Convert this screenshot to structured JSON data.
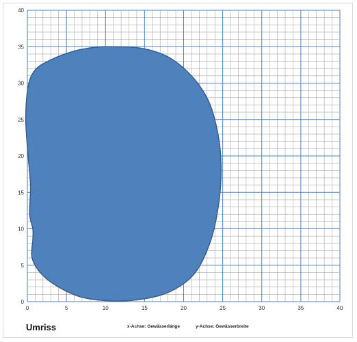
{
  "chart_data": {
    "type": "area",
    "title": "",
    "xlabel": "",
    "ylabel": "",
    "xlim": [
      0,
      40
    ],
    "ylim": [
      0,
      40
    ],
    "x_ticks": [
      0,
      5,
      10,
      15,
      20,
      25,
      30,
      35,
      40
    ],
    "y_ticks": [
      0,
      5,
      10,
      15,
      20,
      25,
      30,
      35,
      40
    ],
    "grid": true,
    "minor_grid_step": 1,
    "major_grid_step": 5,
    "fill_color": "#4f81bd",
    "outline_color": "#385d8a",
    "grid_minor_color": "#a6a6a6",
    "grid_major_color": "#4f81bd",
    "outline": [
      [
        10.5,
        35.0
      ],
      [
        14.5,
        34.8
      ],
      [
        18.0,
        33.6
      ],
      [
        21.0,
        31.0
      ],
      [
        23.2,
        27.5
      ],
      [
        24.4,
        23.0
      ],
      [
        24.8,
        18.5
      ],
      [
        24.5,
        13.5
      ],
      [
        23.5,
        8.5
      ],
      [
        21.5,
        4.0
      ],
      [
        18.5,
        1.5
      ],
      [
        15.0,
        0.4
      ],
      [
        11.0,
        0.1
      ],
      [
        7.0,
        0.6
      ],
      [
        4.0,
        2.0
      ],
      [
        1.8,
        3.8
      ],
      [
        0.6,
        6.0
      ],
      [
        0.7,
        8.5
      ],
      [
        0.7,
        10.0
      ],
      [
        0.3,
        12.0
      ],
      [
        0.4,
        16.0
      ],
      [
        0.1,
        20.0
      ],
      [
        -0.2,
        25.0
      ],
      [
        0.1,
        29.5
      ],
      [
        1.0,
        31.8
      ],
      [
        3.0,
        33.2
      ],
      [
        6.0,
        34.4
      ],
      [
        8.5,
        34.9
      ]
    ]
  },
  "caption": {
    "title": "Umriss",
    "x_axis": "x-Achse: Gewässerlänge",
    "y_axis": "y-Achse: Gewässerbreite"
  }
}
